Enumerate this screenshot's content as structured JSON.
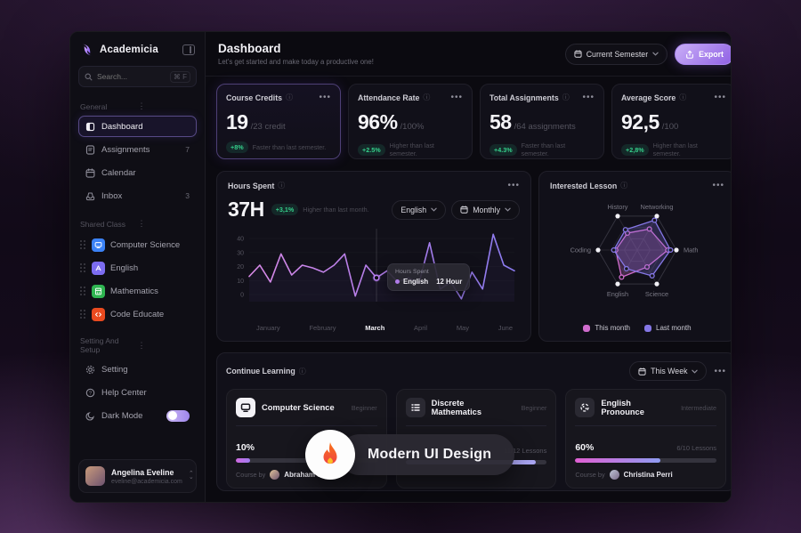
{
  "brand": {
    "name": "Academicia"
  },
  "sidebar": {
    "search": {
      "placeholder": "Search...",
      "shortcut": "⌘ F"
    },
    "sections": [
      {
        "label": "General",
        "items": [
          {
            "label": "Dashboard"
          },
          {
            "label": "Assignments",
            "badge": "7"
          },
          {
            "label": "Calendar"
          },
          {
            "label": "Inbox",
            "badge": "3"
          }
        ]
      },
      {
        "label": "Shared Class",
        "items": [
          {
            "label": "Computer Science",
            "color": "#3b82f6"
          },
          {
            "label": "English",
            "color": "#7c6cf0"
          },
          {
            "label": "Mathematics",
            "color": "#2fb551"
          },
          {
            "label": "Code Educate",
            "color": "#ea4a1f"
          }
        ]
      },
      {
        "label": "Setting And Setup",
        "items": [
          {
            "label": "Setting"
          },
          {
            "label": "Help Center"
          },
          {
            "label": "Dark Mode"
          }
        ]
      }
    ],
    "profile": {
      "name": "Angelina Eveline",
      "email": "eveline@academicia.com"
    }
  },
  "header": {
    "title": "Dashboard",
    "subtitle": "Let's get started and make today a productive one!",
    "semester_label": "Current Semester",
    "export_label": "Export"
  },
  "stats": [
    {
      "title": "Course Credits",
      "value": "19",
      "suffix": "/23 credit",
      "badge": "+8%",
      "note": "Faster than last semester."
    },
    {
      "title": "Attendance Rate",
      "value": "96%",
      "suffix": "/100%",
      "badge": "+2.5%",
      "note": "Higher than last semester."
    },
    {
      "title": "Total Assignments",
      "value": "58",
      "suffix": "/64 assignments",
      "badge": "+4.3%",
      "note": "Faster than last semester."
    },
    {
      "title": "Average Score",
      "value": "92,5",
      "suffix": "/100",
      "badge": "+2,8%",
      "note": "Higher than last semester."
    }
  ],
  "hours_spent": {
    "title": "Hours Spent",
    "value": "37H",
    "badge": "+3,1%",
    "note": "Higher than last month.",
    "filter_subject": "English",
    "filter_period": "Monthly",
    "tooltip": {
      "title": "Hours Spent",
      "series": "English",
      "value": "12 Hour"
    }
  },
  "interested_lesson": {
    "title": "Interested Lesson"
  },
  "chart_data": [
    {
      "type": "line",
      "title": "Hours Spent (hours per week, monthly view)",
      "x_months": [
        "January",
        "February",
        "March",
        "April",
        "May",
        "June"
      ],
      "active_month": "March",
      "values": [
        13,
        21,
        9,
        29,
        14,
        21,
        19,
        16,
        21,
        29,
        -1,
        21,
        12,
        17,
        9,
        12,
        8,
        37,
        4,
        9,
        -3,
        16,
        4,
        43,
        21,
        17
      ],
      "highlight_index": 12,
      "highlight_value_label": "12 Hour",
      "yticks": [
        0,
        10,
        20,
        30,
        40
      ],
      "ylim": [
        -5,
        47
      ],
      "line_gradient": [
        "#d98ae8",
        "#b07ce8",
        "#8b7cf0"
      ],
      "legend_position": "none",
      "grid": true
    },
    {
      "type": "radar",
      "title": "Interested Lesson",
      "axes": [
        "History",
        "Networking",
        "Math",
        "Science",
        "English",
        "Coding"
      ],
      "max": 100,
      "series": [
        {
          "name": "This month",
          "color": "#d06ccd",
          "values": [
            50,
            62,
            78,
            50,
            80,
            55
          ]
        },
        {
          "name": "Last month",
          "color": "#8577e6",
          "values": [
            60,
            88,
            85,
            76,
            55,
            60
          ]
        }
      ],
      "legend_position": "bottom"
    }
  ],
  "continue_learning": {
    "title": "Continue Learning",
    "filter": "This Week",
    "courses": [
      {
        "name": "Computer Science",
        "level": "Beginner",
        "percent": "10%",
        "progress": 10,
        "course_by_label": "Course by",
        "instructor": "Abraham Stec"
      },
      {
        "name": "Discrete Mathematics",
        "level": "Beginner",
        "lessons": "11/12 Lessons",
        "progress": 92
      },
      {
        "name": "English Pronounce",
        "level": "Intermediate",
        "percent": "60%",
        "progress": 60,
        "lessons": "6/10 Lessons",
        "course_by_label": "Course by",
        "instructor": "Christina Perri"
      }
    ]
  },
  "overlay": {
    "label": "Modern UI Design"
  },
  "colors": {
    "accent": "#8b5cf6",
    "positive": "#35d08b",
    "this_month": "#d06ccd",
    "last_month": "#8577e6"
  }
}
